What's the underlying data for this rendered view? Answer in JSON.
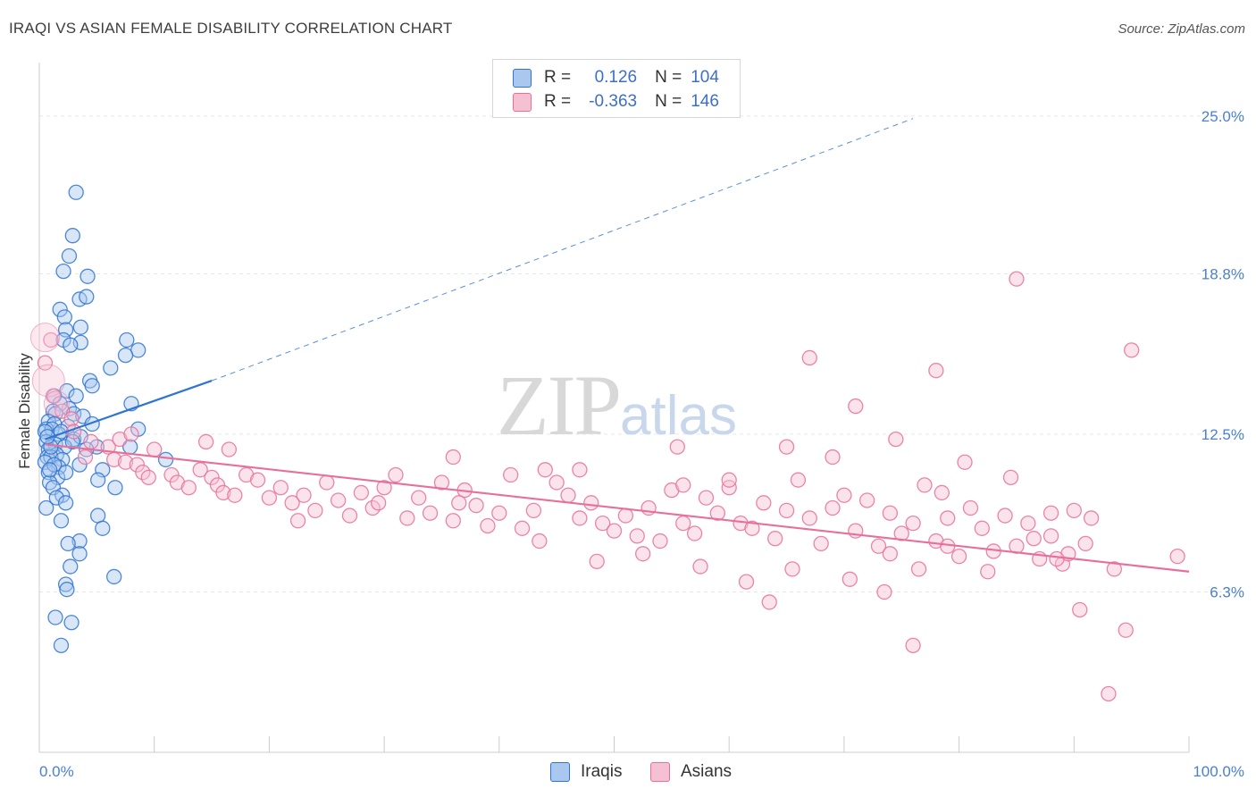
{
  "title": "IRAQI VS ASIAN FEMALE DISABILITY CORRELATION CHART",
  "source": "Source: ZipAtlas.com",
  "watermark": {
    "main": "ZIP",
    "sub": "atlas"
  },
  "colors": {
    "iraqis": "#2f74d0",
    "iraqis_fill": "#a9c7ef",
    "asians": "#e7709a",
    "asians_fill": "#f6c0d3",
    "grid": "#e6e6e6",
    "tick_text": "#4a7fd4"
  },
  "legend": {
    "r_label": "R =",
    "n_label": "N =",
    "rows": [
      {
        "series": "iraqis",
        "r": "0.126",
        "n": "104"
      },
      {
        "series": "asians",
        "r": "-0.363",
        "n": "146"
      }
    ]
  },
  "bottom_legend": [
    {
      "series": "iraqis",
      "label": "Iraqis"
    },
    {
      "series": "asians",
      "label": "Asians"
    }
  ],
  "chart_data": {
    "type": "scatter",
    "title": "IRAQI VS ASIAN FEMALE DISABILITY CORRELATION CHART",
    "xlabel": "",
    "ylabel": "Female Disability",
    "xlim": [
      0,
      100
    ],
    "ylim": [
      0,
      27.1
    ],
    "x_tick_labels": [
      {
        "value": 0,
        "label": "0.0%"
      },
      {
        "value": 100,
        "label": "100.0%"
      }
    ],
    "y_tick_labels": [
      {
        "value": 6.3,
        "label": "6.3%"
      },
      {
        "value": 12.5,
        "label": "12.5%"
      },
      {
        "value": 18.8,
        "label": "18.8%"
      },
      {
        "value": 25.0,
        "label": "25.0%"
      }
    ],
    "series": [
      {
        "name": "Iraqis",
        "r": 0.126,
        "n": 104,
        "trend": {
          "x": [
            0.5,
            15
          ],
          "y": [
            12.3,
            14.6
          ],
          "dashed_extension_to": [
            76,
            24.9
          ]
        },
        "points": [
          [
            3.2,
            22.0
          ],
          [
            2.9,
            20.3
          ],
          [
            2.6,
            19.5
          ],
          [
            2.1,
            18.9
          ],
          [
            4.2,
            18.7
          ],
          [
            3.5,
            17.8
          ],
          [
            4.1,
            17.9
          ],
          [
            1.8,
            17.4
          ],
          [
            2.2,
            17.1
          ],
          [
            3.6,
            16.7
          ],
          [
            2.3,
            16.6
          ],
          [
            2.1,
            16.2
          ],
          [
            7.6,
            16.2
          ],
          [
            3.6,
            16.1
          ],
          [
            8.6,
            15.8
          ],
          [
            2.7,
            16.0
          ],
          [
            7.5,
            15.6
          ],
          [
            6.2,
            15.1
          ],
          [
            4.4,
            14.6
          ],
          [
            4.6,
            14.4
          ],
          [
            2.4,
            14.2
          ],
          [
            3.2,
            14.0
          ],
          [
            1.3,
            14.0
          ],
          [
            2.6,
            13.5
          ],
          [
            8.0,
            13.7
          ],
          [
            1.8,
            13.7
          ],
          [
            1.2,
            13.4
          ],
          [
            1.4,
            13.3
          ],
          [
            3.0,
            13.3
          ],
          [
            3.8,
            13.2
          ],
          [
            0.8,
            13.0
          ],
          [
            1.3,
            12.9
          ],
          [
            2.5,
            12.8
          ],
          [
            0.6,
            12.7
          ],
          [
            1.1,
            12.7
          ],
          [
            0.5,
            12.6
          ],
          [
            1.7,
            12.5
          ],
          [
            4.6,
            12.9
          ],
          [
            8.6,
            12.7
          ],
          [
            3.0,
            12.3
          ],
          [
            0.6,
            12.2
          ],
          [
            1.4,
            12.1
          ],
          [
            2.2,
            12.0
          ],
          [
            0.8,
            11.9
          ],
          [
            1.5,
            11.7
          ],
          [
            3.6,
            12.4
          ],
          [
            5.0,
            12.0
          ],
          [
            0.7,
            11.6
          ],
          [
            1.0,
            11.6
          ],
          [
            2.0,
            11.5
          ],
          [
            0.5,
            11.4
          ],
          [
            1.7,
            11.2
          ],
          [
            3.5,
            11.3
          ],
          [
            5.5,
            11.1
          ],
          [
            7.9,
            12.0
          ],
          [
            11.0,
            11.5
          ],
          [
            0.8,
            11.0
          ],
          [
            1.6,
            10.8
          ],
          [
            2.3,
            11.0
          ],
          [
            0.9,
            10.6
          ],
          [
            1.2,
            10.4
          ],
          [
            2.0,
            10.1
          ],
          [
            5.1,
            10.7
          ],
          [
            6.6,
            10.4
          ],
          [
            1.5,
            10.0
          ],
          [
            2.3,
            9.8
          ],
          [
            0.6,
            9.6
          ],
          [
            5.1,
            9.3
          ],
          [
            1.9,
            9.1
          ],
          [
            5.5,
            8.8
          ],
          [
            3.5,
            8.3
          ],
          [
            2.5,
            8.2
          ],
          [
            3.5,
            7.8
          ],
          [
            2.7,
            7.3
          ],
          [
            6.5,
            6.9
          ],
          [
            2.3,
            6.6
          ],
          [
            2.4,
            6.4
          ],
          [
            1.4,
            5.3
          ],
          [
            2.8,
            5.1
          ],
          [
            1.9,
            4.2
          ],
          [
            1.0,
            12.0
          ],
          [
            1.3,
            11.3
          ],
          [
            2.9,
            12.2
          ],
          [
            0.7,
            12.4
          ],
          [
            1.9,
            12.6
          ],
          [
            4.1,
            11.9
          ],
          [
            0.9,
            11.1
          ]
        ]
      },
      {
        "name": "Asians",
        "r": -0.363,
        "n": 146,
        "trend": {
          "x": [
            0.5,
            100
          ],
          "y": [
            12.1,
            7.1
          ]
        },
        "points": [
          [
            0.5,
            15.3
          ],
          [
            1.2,
            14.0
          ],
          [
            1.0,
            16.2
          ],
          [
            2.0,
            13.4
          ],
          [
            2.8,
            13.1
          ],
          [
            3.0,
            12.6
          ],
          [
            4.5,
            12.2
          ],
          [
            6.0,
            12.0
          ],
          [
            7.0,
            12.3
          ],
          [
            8.0,
            12.5
          ],
          [
            10.0,
            11.9
          ],
          [
            14.5,
            12.2
          ],
          [
            4.0,
            11.6
          ],
          [
            6.5,
            11.5
          ],
          [
            7.5,
            11.4
          ],
          [
            8.5,
            11.3
          ],
          [
            9.0,
            11.0
          ],
          [
            9.5,
            10.8
          ],
          [
            11.5,
            10.9
          ],
          [
            12.0,
            10.6
          ],
          [
            13.0,
            10.4
          ],
          [
            14.0,
            11.1
          ],
          [
            15.0,
            10.8
          ],
          [
            15.5,
            10.5
          ],
          [
            16.0,
            10.2
          ],
          [
            17.0,
            10.1
          ],
          [
            18.0,
            10.9
          ],
          [
            19.0,
            10.7
          ],
          [
            20.0,
            10.0
          ],
          [
            21.0,
            10.4
          ],
          [
            22.0,
            9.8
          ],
          [
            23.0,
            10.1
          ],
          [
            24.0,
            9.5
          ],
          [
            25.0,
            10.6
          ],
          [
            26.0,
            9.9
          ],
          [
            27.0,
            9.3
          ],
          [
            28.0,
            10.2
          ],
          [
            29.0,
            9.6
          ],
          [
            30.0,
            10.4
          ],
          [
            31.0,
            10.9
          ],
          [
            32.0,
            9.2
          ],
          [
            33.0,
            10.0
          ],
          [
            34.0,
            9.4
          ],
          [
            35.0,
            10.6
          ],
          [
            36.0,
            9.1
          ],
          [
            37.0,
            10.3
          ],
          [
            38.0,
            9.7
          ],
          [
            39.0,
            8.9
          ],
          [
            40.0,
            9.4
          ],
          [
            41.0,
            10.9
          ],
          [
            42.0,
            8.8
          ],
          [
            43.0,
            9.5
          ],
          [
            44.0,
            11.1
          ],
          [
            45.0,
            10.6
          ],
          [
            46.0,
            10.1
          ],
          [
            47.0,
            9.2
          ],
          [
            48.0,
            9.8
          ],
          [
            49.0,
            9.0
          ],
          [
            50.0,
            8.7
          ],
          [
            51.0,
            9.3
          ],
          [
            52.0,
            8.5
          ],
          [
            53.0,
            9.6
          ],
          [
            54.0,
            8.3
          ],
          [
            55.0,
            10.3
          ],
          [
            56.0,
            9.0
          ],
          [
            57.0,
            8.6
          ],
          [
            58.0,
            10.0
          ],
          [
            59.0,
            9.4
          ],
          [
            60.0,
            10.4
          ],
          [
            61.0,
            9.0
          ],
          [
            62.0,
            8.8
          ],
          [
            63.0,
            9.8
          ],
          [
            64.0,
            8.4
          ],
          [
            65.0,
            9.5
          ],
          [
            66.0,
            10.7
          ],
          [
            67.0,
            9.2
          ],
          [
            68.0,
            8.2
          ],
          [
            69.0,
            9.6
          ],
          [
            70.0,
            10.1
          ],
          [
            71.0,
            8.7
          ],
          [
            72.0,
            9.9
          ],
          [
            73.0,
            8.1
          ],
          [
            74.0,
            9.4
          ],
          [
            75.0,
            8.6
          ],
          [
            76.0,
            9.0
          ],
          [
            77.0,
            10.5
          ],
          [
            78.0,
            8.3
          ],
          [
            79.0,
            9.2
          ],
          [
            80.0,
            7.7
          ],
          [
            81.0,
            9.6
          ],
          [
            82.0,
            8.8
          ],
          [
            83.0,
            7.9
          ],
          [
            84.0,
            9.3
          ],
          [
            85.0,
            8.1
          ],
          [
            86.0,
            9.0
          ],
          [
            87.0,
            7.6
          ],
          [
            88.0,
            8.5
          ],
          [
            89.0,
            7.4
          ],
          [
            90.0,
            9.5
          ],
          [
            91.0,
            8.2
          ],
          [
            22.5,
            9.1
          ],
          [
            29.5,
            9.8
          ],
          [
            36.5,
            9.8
          ],
          [
            43.5,
            8.3
          ],
          [
            48.5,
            7.5
          ],
          [
            52.5,
            7.8
          ],
          [
            57.5,
            7.3
          ],
          [
            61.5,
            6.7
          ],
          [
            65.5,
            7.2
          ],
          [
            70.5,
            6.8
          ],
          [
            73.5,
            6.3
          ],
          [
            76.5,
            7.2
          ],
          [
            78.5,
            10.2
          ],
          [
            82.5,
            7.1
          ],
          [
            86.5,
            8.4
          ],
          [
            89.5,
            7.8
          ],
          [
            93.5,
            7.2
          ],
          [
            95.0,
            15.8
          ],
          [
            85.0,
            18.6
          ],
          [
            67.0,
            15.5
          ],
          [
            78.0,
            15.0
          ],
          [
            71.0,
            13.6
          ],
          [
            65.0,
            12.0
          ],
          [
            60.0,
            10.7
          ],
          [
            56.0,
            10.5
          ],
          [
            47.0,
            11.1
          ],
          [
            55.5,
            12.0
          ],
          [
            69.0,
            11.6
          ],
          [
            74.5,
            12.3
          ],
          [
            80.5,
            11.4
          ],
          [
            84.5,
            10.8
          ],
          [
            88.0,
            9.4
          ],
          [
            91.5,
            9.2
          ],
          [
            99.0,
            7.7
          ],
          [
            63.5,
            5.9
          ],
          [
            76.0,
            4.2
          ],
          [
            74.0,
            7.8
          ],
          [
            79.0,
            8.1
          ],
          [
            88.5,
            7.6
          ],
          [
            94.5,
            4.8
          ],
          [
            93.0,
            2.3
          ],
          [
            90.5,
            5.6
          ],
          [
            36.0,
            11.6
          ],
          [
            16.5,
            11.9
          ]
        ]
      }
    ]
  }
}
